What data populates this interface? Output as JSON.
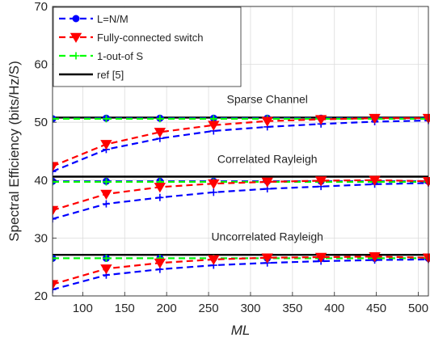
{
  "chart_data": {
    "type": "line",
    "xlabel": "ML",
    "ylabel": "Spectral Efficiency (bits/Hz/S)",
    "xlim": [
      64,
      512
    ],
    "ylim": [
      20,
      70
    ],
    "xticks": [
      100,
      150,
      200,
      250,
      300,
      350,
      400,
      450,
      500
    ],
    "yticks": [
      20,
      30,
      40,
      50,
      60,
      70
    ],
    "grid": true,
    "legend_position": "top-left",
    "x": [
      64,
      128,
      192,
      256,
      320,
      384,
      448,
      512
    ],
    "series": [
      {
        "name": "L=N/M",
        "color": "#0000ff",
        "dash": "dashed",
        "marker": "circle",
        "groups": [
          {
            "scenario": "Sparse Channel",
            "values": [
              50.6,
              50.7,
              50.7,
              50.7,
              50.7,
              50.7,
              50.7,
              50.7
            ]
          },
          {
            "scenario": "Correlated Rayleigh",
            "values": [
              39.8,
              39.8,
              39.8,
              39.8,
              39.8,
              39.8,
              39.8,
              39.8
            ]
          },
          {
            "scenario": "Uncorrelated Rayleigh",
            "values": [
              26.5,
              26.5,
              26.5,
              26.5,
              26.5,
              26.5,
              26.5,
              26.5
            ]
          }
        ]
      },
      {
        "name": "Fully-connected switch",
        "color": "#ff0000",
        "dash": "dashed",
        "marker": "triangle-down",
        "groups": [
          {
            "scenario": "Sparse Channel",
            "values": [
              42.4,
              46.2,
              48.3,
              49.5,
              50.2,
              50.5,
              50.7,
              50.7
            ]
          },
          {
            "scenario": "Correlated Rayleigh",
            "values": [
              34.8,
              37.6,
              38.8,
              39.4,
              39.7,
              39.9,
              40.0,
              39.8
            ]
          },
          {
            "scenario": "Uncorrelated Rayleigh",
            "values": [
              22.0,
              24.7,
              25.7,
              26.3,
              26.6,
              26.7,
              26.8,
              26.6
            ]
          }
        ]
      },
      {
        "name": "1-out-of S",
        "color": "#00ff00",
        "dash": "dashed",
        "marker": "plus",
        "groups": [
          {
            "scenario": "Sparse Channel",
            "values": [
              50.6,
              50.6,
              50.6,
              50.6,
              50.6,
              50.6,
              50.6,
              50.6
            ]
          },
          {
            "scenario": "Correlated Rayleigh",
            "values": [
              39.7,
              39.7,
              39.7,
              39.7,
              39.7,
              39.7,
              39.7,
              39.7
            ]
          },
          {
            "scenario": "Uncorrelated Rayleigh",
            "values": [
              26.5,
              26.5,
              26.5,
              26.5,
              26.5,
              26.5,
              26.5,
              26.5
            ]
          }
        ]
      },
      {
        "name": "",
        "color": "#0000ff",
        "dash": "dashed",
        "marker": "plus",
        "groups": [
          {
            "scenario": "Sparse Channel",
            "values": [
              41.5,
              45.3,
              47.2,
              48.5,
              49.2,
              49.7,
              50.1,
              50.3
            ]
          },
          {
            "scenario": "Correlated Rayleigh",
            "values": [
              33.3,
              35.9,
              37.0,
              37.9,
              38.5,
              38.9,
              39.3,
              39.5
            ]
          },
          {
            "scenario": "Uncorrelated Rayleigh",
            "values": [
              21.1,
              23.6,
              24.6,
              25.3,
              25.7,
              26.0,
              26.2,
              26.3
            ]
          }
        ]
      },
      {
        "name": "ref [5]",
        "color": "#000000",
        "dash": "solid",
        "marker": "none",
        "groups": [
          {
            "scenario": "Sparse Channel",
            "values": [
              50.8,
              50.8,
              50.8,
              50.8,
              50.8,
              50.8,
              50.8,
              50.8
            ]
          },
          {
            "scenario": "Correlated Rayleigh",
            "values": [
              40.6,
              40.6,
              40.6,
              40.6,
              40.6,
              40.6,
              40.6,
              40.6
            ]
          },
          {
            "scenario": "Uncorrelated Rayleigh",
            "values": [
              27.1,
              27.1,
              27.1,
              27.1,
              27.1,
              27.1,
              27.1,
              27.1
            ]
          }
        ]
      }
    ],
    "legend": [
      {
        "label": "L=N/M",
        "color": "#0000ff",
        "dash": "dashed",
        "marker": "circle"
      },
      {
        "label": "Fully-connected switch",
        "color": "#ff0000",
        "dash": "dashed",
        "marker": "triangle-down"
      },
      {
        "label": "1-out-of S",
        "color": "#00ff00",
        "dash": "dashed",
        "marker": "plus"
      },
      {
        "label": "ref [5]",
        "color": "#000000",
        "dash": "solid",
        "marker": "none"
      }
    ],
    "annotations": [
      {
        "text": "Sparse Channel",
        "x": 320,
        "y": 53.3
      },
      {
        "text": "Correlated Rayleigh",
        "x": 320,
        "y": 43.0
      },
      {
        "text": "Uncorrelated Rayleigh",
        "x": 320,
        "y": 29.6
      }
    ]
  }
}
